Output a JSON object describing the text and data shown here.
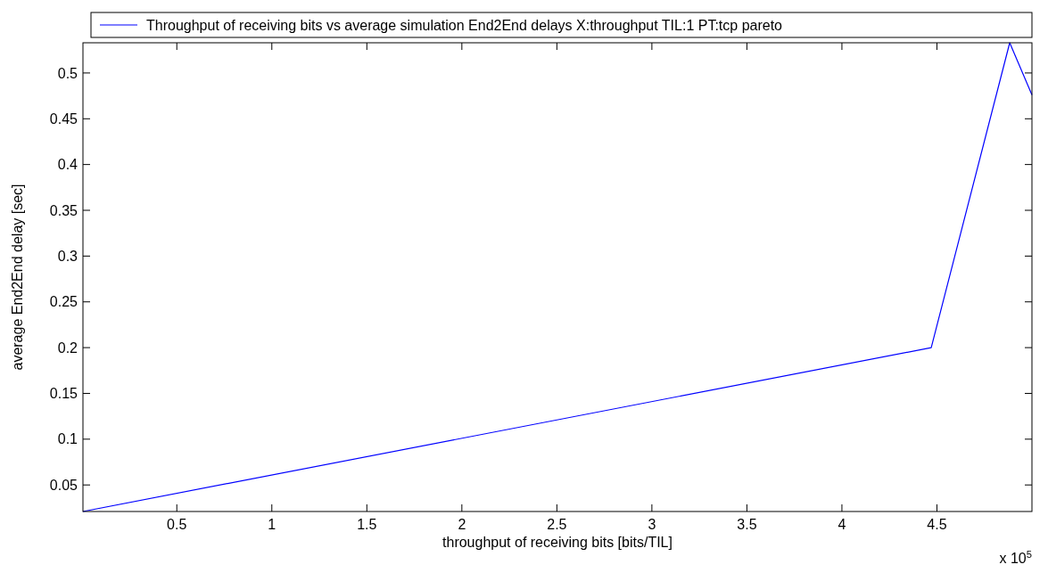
{
  "chart_data": {
    "type": "line",
    "xlabel": "throughput of receiving bits [bits/TIL]",
    "ylabel": "average End2End delay [sec]",
    "annotations": [
      "x 10$^{5}$"
    ],
    "x": [
      0.006,
      4.47,
      4.883,
      5.0
    ],
    "series": [
      {
        "name": "Throughput of receiving bits vs average simulation End2End delays X:throughput TIL:1 PT:tcp pareto",
        "color": "#0000ff",
        "values": [
          0.021,
          0.2,
          0.533,
          0.476
        ]
      }
    ],
    "xlim": [
      0.006,
      5.0
    ],
    "ylim": [
      0.021,
      0.533
    ],
    "xticks": [
      0.5,
      1,
      1.5,
      2,
      2.5,
      3,
      3.5,
      4,
      4.5
    ],
    "yticks": [
      0.05,
      0.1,
      0.15,
      0.2,
      0.25,
      0.3,
      0.35,
      0.4,
      0.45,
      0.5
    ],
    "legend": "top",
    "grid": false,
    "marker": "none",
    "line_style": "solid"
  }
}
